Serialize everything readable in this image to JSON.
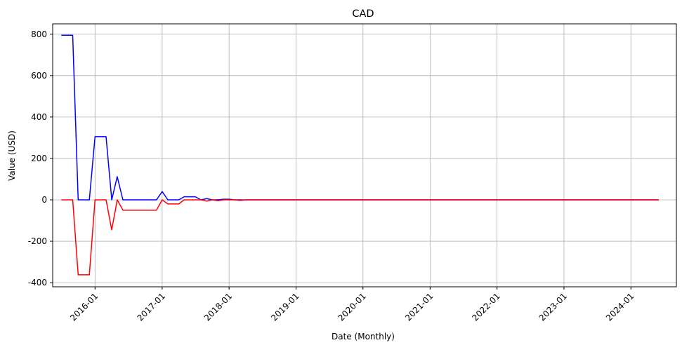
{
  "chart_data": {
    "type": "line",
    "title": "CAD",
    "xlabel": "Date (Monthly)",
    "ylabel": "Value (USD)",
    "ylim": [
      -420,
      850
    ],
    "xlim": [
      "2015-05-15",
      "2024-09-05"
    ],
    "grid": true,
    "x_ticks": [
      "2016-01",
      "2017-01",
      "2018-01",
      "2019-01",
      "2020-01",
      "2021-01",
      "2022-01",
      "2023-01",
      "2024-01"
    ],
    "y_ticks": [
      -400,
      -200,
      0,
      200,
      400,
      600,
      800
    ],
    "x": [
      "2015-07",
      "2015-08",
      "2015-09",
      "2015-10",
      "2015-11",
      "2015-12",
      "2016-01",
      "2016-02",
      "2016-03",
      "2016-04",
      "2016-05",
      "2016-06",
      "2016-07",
      "2016-08",
      "2016-09",
      "2016-10",
      "2016-11",
      "2016-12",
      "2017-01",
      "2017-02",
      "2017-03",
      "2017-04",
      "2017-05",
      "2017-06",
      "2017-07",
      "2017-08",
      "2017-09",
      "2017-10",
      "2017-11",
      "2017-12",
      "2018-01",
      "2018-02",
      "2018-03",
      "2018-04",
      "2018-05",
      "2018-06",
      "2018-07",
      "2018-08",
      "2018-09",
      "2018-10",
      "2018-11",
      "2018-12",
      "2019-01",
      "2019-02",
      "2019-03",
      "2019-04",
      "2019-05",
      "2019-06",
      "2019-07",
      "2019-08",
      "2019-09",
      "2019-10",
      "2019-11",
      "2019-12",
      "2020-01",
      "2020-02",
      "2020-03",
      "2020-04",
      "2020-05",
      "2020-06",
      "2020-07",
      "2020-08",
      "2020-09",
      "2020-10",
      "2020-11",
      "2020-12",
      "2021-01",
      "2021-02",
      "2021-03",
      "2021-04",
      "2021-05",
      "2021-06",
      "2021-07",
      "2021-08",
      "2021-09",
      "2021-10",
      "2021-11",
      "2021-12",
      "2022-01",
      "2022-02",
      "2022-03",
      "2022-04",
      "2022-05",
      "2022-06",
      "2022-07",
      "2022-08",
      "2022-09",
      "2022-10",
      "2022-11",
      "2022-12",
      "2023-01",
      "2023-02",
      "2023-03",
      "2023-04",
      "2023-05",
      "2023-06",
      "2023-07",
      "2023-08",
      "2023-09",
      "2023-10",
      "2023-11",
      "2023-12",
      "2024-01",
      "2024-02",
      "2024-03",
      "2024-04",
      "2024-05",
      "2024-06"
    ],
    "series": [
      {
        "color": "#0000ff",
        "values": [
          795,
          795,
          795,
          0,
          0,
          0,
          305,
          305,
          305,
          0,
          112,
          0,
          0,
          0,
          0,
          0,
          0,
          0,
          40,
          0,
          0,
          0,
          15,
          15,
          15,
          0,
          6,
          0,
          0,
          3,
          3,
          0,
          0,
          0,
          0,
          0,
          0,
          0,
          0,
          0,
          0,
          0,
          0,
          0,
          0,
          0,
          0,
          0,
          0,
          0,
          0,
          0,
          0,
          0,
          0,
          0,
          0,
          0,
          0,
          0,
          0,
          0,
          0,
          0,
          0,
          0,
          0,
          0,
          0,
          0,
          0,
          0,
          0,
          0,
          0,
          0,
          0,
          0,
          0,
          0,
          0,
          0,
          0,
          0,
          0,
          0,
          0,
          0,
          0,
          0,
          0,
          0,
          0,
          0,
          0,
          0,
          0,
          0,
          0,
          0,
          0,
          0,
          0,
          0,
          0,
          0,
          0,
          0
        ]
      },
      {
        "color": "#ff0000",
        "values": [
          0,
          0,
          0,
          -362,
          -362,
          -362,
          0,
          0,
          0,
          -145,
          0,
          -50,
          -50,
          -50,
          -50,
          -50,
          -50,
          -50,
          0,
          -20,
          -20,
          -20,
          0,
          0,
          0,
          0,
          -6,
          0,
          -4,
          0,
          0,
          0,
          -3,
          0,
          0,
          0,
          0,
          0,
          0,
          0,
          0,
          0,
          0,
          0,
          0,
          0,
          0,
          0,
          0,
          0,
          0,
          0,
          0,
          0,
          0,
          0,
          0,
          0,
          0,
          0,
          0,
          0,
          0,
          0,
          0,
          0,
          0,
          0,
          0,
          0,
          0,
          0,
          0,
          0,
          0,
          0,
          0,
          0,
          0,
          0,
          0,
          0,
          0,
          0,
          0,
          0,
          0,
          0,
          0,
          0,
          0,
          0,
          0,
          0,
          0,
          0,
          0,
          0,
          0,
          0,
          0,
          0,
          0,
          0,
          0,
          0,
          0,
          0
        ]
      }
    ]
  }
}
